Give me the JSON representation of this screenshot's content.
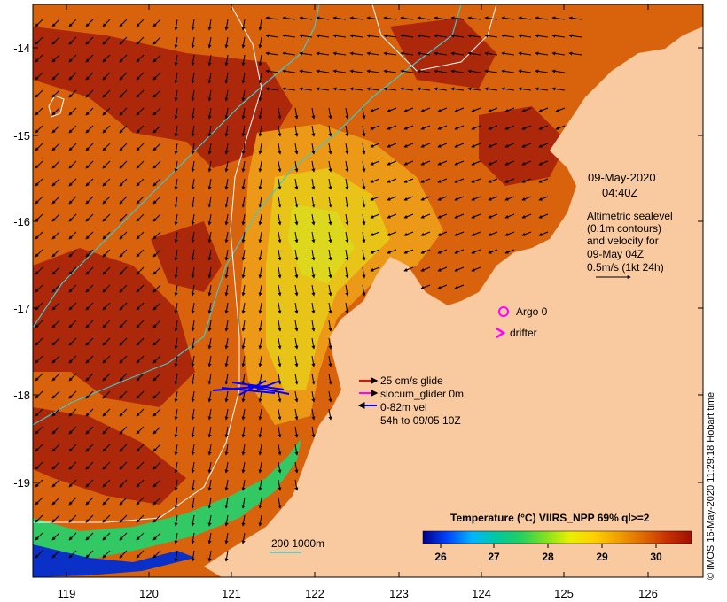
{
  "date": "09-May-2020",
  "time": "04:40Z",
  "altimetry_note": [
    "Altimetric sealevel",
    "(0.1m contours)",
    "and velocity for",
    "09-May 04Z",
    "0.5m/s (1kt 24h)"
  ],
  "argo_label": "Argo 0",
  "drifter_label": "drifter",
  "legend": {
    "glide": "25 cm/s glide",
    "glider": "slocum_glider 0m",
    "vel": "0-82m vel",
    "period": "54h to 09/05 10Z",
    "colors": {
      "glide": "#ff0000",
      "glider": "#ff00ff",
      "vel": "#0000ff"
    }
  },
  "bathy_label": "200  1000m",
  "colorbar": {
    "title": "Temperature (°C) VIIRS_NPP 69% ql>=2",
    "ticks": [
      "26",
      "27",
      "28",
      "29",
      "30"
    ],
    "range": [
      25.5,
      30.7
    ],
    "colors": [
      "#00008b",
      "#0044ff",
      "#00b4ff",
      "#00c8a0",
      "#22d060",
      "#80e020",
      "#e8f000",
      "#ffd000",
      "#f0a000",
      "#e06a00",
      "#c83000",
      "#a01000"
    ]
  },
  "lat_ticks": [
    "-14",
    "-15",
    "-16",
    "-17",
    "-18",
    "-19"
  ],
  "lon_ticks": [
    "119",
    "120",
    "121",
    "122",
    "123",
    "124",
    "125",
    "126"
  ],
  "credit": "© IMOS 16-May-2020 11:29:18 Hobart time",
  "land_color": "#f9c99f",
  "sst_colors": {
    "warm": "#a51f0a",
    "mid": "#d9620d",
    "cool": "#eea01a",
    "cooler": "#e6d31a",
    "cold": "#32c864",
    "coldest": "#0a30c8"
  }
}
